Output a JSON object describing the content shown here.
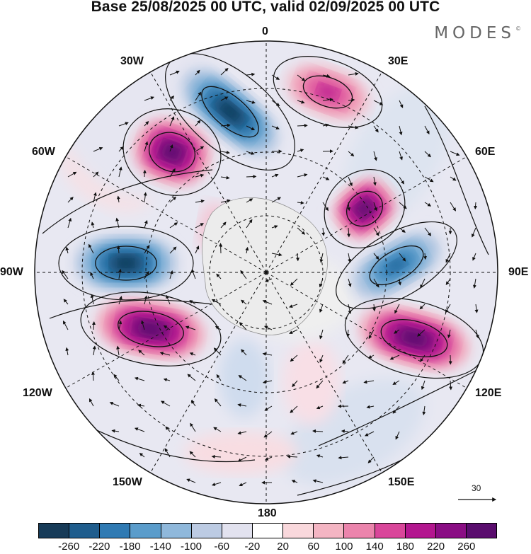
{
  "title": "Base 25/08/2025 00 UTC, valid 02/09/2025 00 UTC",
  "brand": "MODES",
  "brand_mark": "©",
  "map": {
    "projection": "polar-stereographic-south",
    "longitude_labels": {
      "top": "0",
      "top_left": "30W",
      "top_right": "30E",
      "upper_left": "60W",
      "upper_right": "60E",
      "left": "90W",
      "right": "90E",
      "lower_left": "120W",
      "lower_right": "120E",
      "bottom_left": "150W",
      "bottom_right": "150E",
      "bottom": "180"
    },
    "anomaly_centres": [
      {
        "name": "negative-anomaly-30w",
        "sign": "negative",
        "strength": 260,
        "label": "30W"
      },
      {
        "name": "positive-anomaly-50w",
        "sign": "positive",
        "strength": 260,
        "label": "60W"
      },
      {
        "name": "negative-anomaly-90w",
        "sign": "negative",
        "strength": 260,
        "label": "90W"
      },
      {
        "name": "positive-anomaly-110w",
        "sign": "positive",
        "strength": 260,
        "label": "120W"
      },
      {
        "name": "positive-anomaly-25e",
        "sign": "positive",
        "strength": 140,
        "label": "30E"
      },
      {
        "name": "positive-anomaly-55e",
        "sign": "positive",
        "strength": 260,
        "label": "60E"
      },
      {
        "name": "negative-anomaly-85e",
        "sign": "negative",
        "strength": 180,
        "label": "90E"
      },
      {
        "name": "positive-anomaly-110e",
        "sign": "positive",
        "strength": 260,
        "label": "120E"
      }
    ]
  },
  "vector_scale": {
    "value": "30"
  },
  "colorbar": {
    "colors": [
      "#173b58",
      "#1f5d8d",
      "#2f7ab3",
      "#5a9ccb",
      "#8fb8db",
      "#bccbe3",
      "#e2e2ef",
      "#ffffff",
      "#f9d8dc",
      "#f4b5c3",
      "#eb84ac",
      "#d9469a",
      "#b3168f",
      "#8a0d84",
      "#5a0d6e"
    ],
    "labels": [
      "-260",
      "-220",
      "-180",
      "-140",
      "-100",
      "-60",
      "-20",
      "20",
      "60",
      "100",
      "140",
      "180",
      "220",
      "260"
    ]
  }
}
